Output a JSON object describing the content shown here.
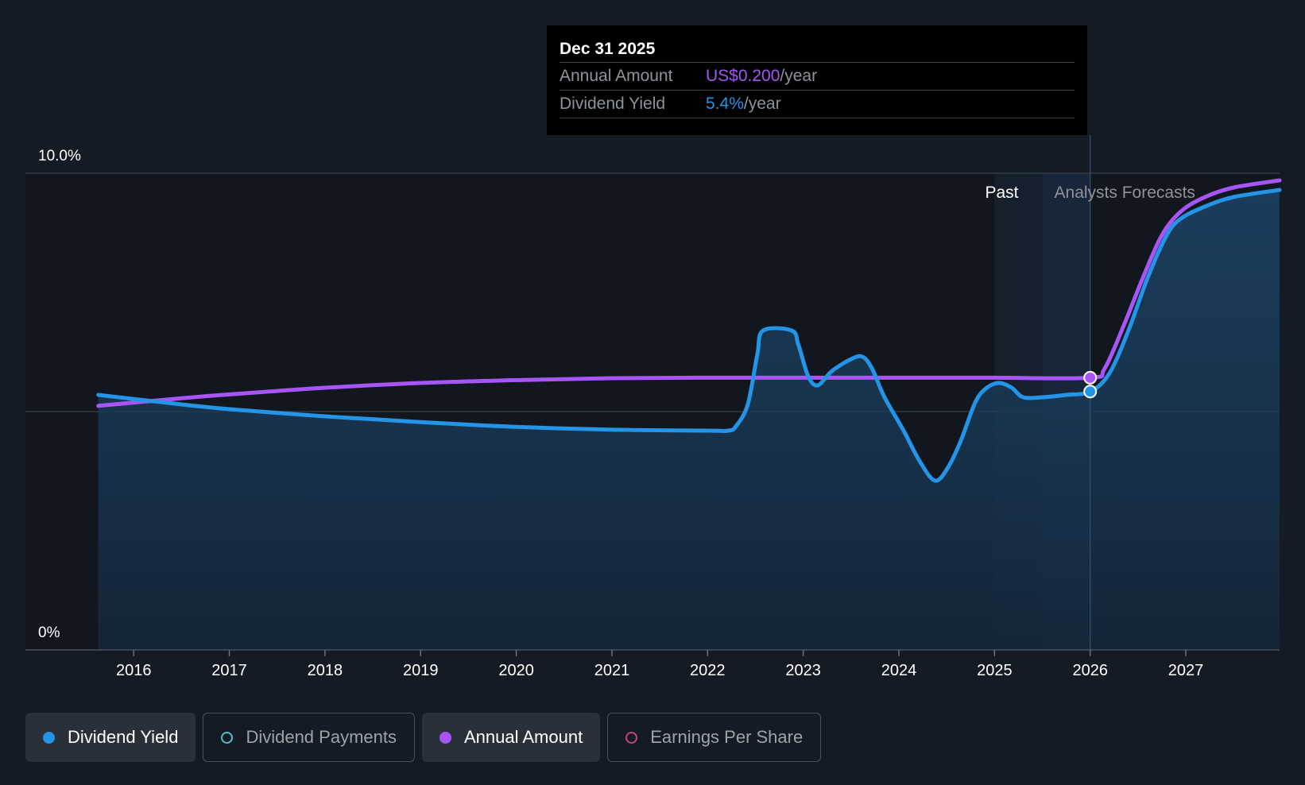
{
  "tooltip": {
    "date": "Dec 31 2025",
    "annual_label": "Annual Amount",
    "annual_value": "US$0.200",
    "annual_unit": "/year",
    "yield_label": "Dividend Yield",
    "yield_value": "5.4%",
    "yield_unit": "/year"
  },
  "regions": {
    "past": "Past",
    "forecast": "Analysts Forecasts"
  },
  "legend": [
    {
      "label": "Dividend Yield",
      "color": "#2394e6",
      "active": true,
      "filled": true
    },
    {
      "label": "Dividend Payments",
      "color": "#4fc3c3",
      "active": false,
      "filled": false
    },
    {
      "label": "Annual Amount",
      "color": "#a855f7",
      "active": true,
      "filled": true
    },
    {
      "label": "Earnings Per Share",
      "color": "#c2447a",
      "active": false,
      "filled": false
    }
  ],
  "chart_data": {
    "type": "line",
    "y_tick_labels": [
      "10.0%",
      "0%"
    ],
    "ylim": [
      0,
      10
    ],
    "xlim": [
      2015.4,
      2027.98
    ],
    "x_tick_labels": [
      "2016",
      "2017",
      "2018",
      "2019",
      "2020",
      "2021",
      "2022",
      "2023",
      "2024",
      "2025",
      "2026",
      "2027"
    ],
    "x_ticks": [
      2016,
      2017,
      2018,
      2019,
      2020,
      2021,
      2022,
      2023,
      2024,
      2025,
      2026,
      2027
    ],
    "grid_values": [
      5,
      10
    ],
    "past_region": [
      2025.0,
      2025.5
    ],
    "forecast_start": 2025.5,
    "marker_x": 2026.0,
    "colors": {
      "yield": "#2394e6",
      "annual": "#a855f7"
    },
    "series": [
      {
        "name": "Dividend Yield",
        "points": [
          [
            2015.63,
            5.35
          ],
          [
            2016.5,
            5.15
          ],
          [
            2017.0,
            5.05
          ],
          [
            2018.0,
            4.9
          ],
          [
            2019.0,
            4.78
          ],
          [
            2020.0,
            4.68
          ],
          [
            2021.0,
            4.62
          ],
          [
            2022.0,
            4.6
          ],
          [
            2022.22,
            4.6
          ],
          [
            2022.3,
            4.7
          ],
          [
            2022.42,
            5.15
          ],
          [
            2022.52,
            6.2
          ],
          [
            2022.58,
            6.7
          ],
          [
            2022.88,
            6.7
          ],
          [
            2022.95,
            6.4
          ],
          [
            2023.05,
            5.75
          ],
          [
            2023.15,
            5.55
          ],
          [
            2023.3,
            5.85
          ],
          [
            2023.5,
            6.1
          ],
          [
            2023.62,
            6.15
          ],
          [
            2023.72,
            5.9
          ],
          [
            2023.85,
            5.3
          ],
          [
            2024.05,
            4.6
          ],
          [
            2024.22,
            3.95
          ],
          [
            2024.38,
            3.55
          ],
          [
            2024.52,
            3.85
          ],
          [
            2024.65,
            4.4
          ],
          [
            2024.8,
            5.2
          ],
          [
            2024.92,
            5.5
          ],
          [
            2025.05,
            5.6
          ],
          [
            2025.18,
            5.5
          ],
          [
            2025.3,
            5.3
          ],
          [
            2025.5,
            5.3
          ],
          [
            2025.75,
            5.35
          ],
          [
            2026.0,
            5.42
          ],
          [
            2026.2,
            5.8
          ],
          [
            2026.4,
            6.7
          ],
          [
            2026.6,
            7.8
          ],
          [
            2026.8,
            8.7
          ],
          [
            2026.95,
            9.05
          ],
          [
            2027.2,
            9.3
          ],
          [
            2027.5,
            9.5
          ],
          [
            2027.98,
            9.65
          ]
        ]
      },
      {
        "name": "Annual Amount",
        "points": [
          [
            2015.63,
            5.12
          ],
          [
            2016.5,
            5.28
          ],
          [
            2017.0,
            5.36
          ],
          [
            2018.0,
            5.5
          ],
          [
            2019.0,
            5.6
          ],
          [
            2020.0,
            5.66
          ],
          [
            2021.0,
            5.7
          ],
          [
            2022.0,
            5.71
          ],
          [
            2023.0,
            5.71
          ],
          [
            2024.0,
            5.71
          ],
          [
            2025.0,
            5.71
          ],
          [
            2026.0,
            5.71
          ],
          [
            2026.15,
            5.9
          ],
          [
            2026.35,
            6.8
          ],
          [
            2026.55,
            7.8
          ],
          [
            2026.75,
            8.7
          ],
          [
            2026.95,
            9.2
          ],
          [
            2027.2,
            9.5
          ],
          [
            2027.5,
            9.7
          ],
          [
            2027.98,
            9.85
          ]
        ]
      }
    ]
  }
}
